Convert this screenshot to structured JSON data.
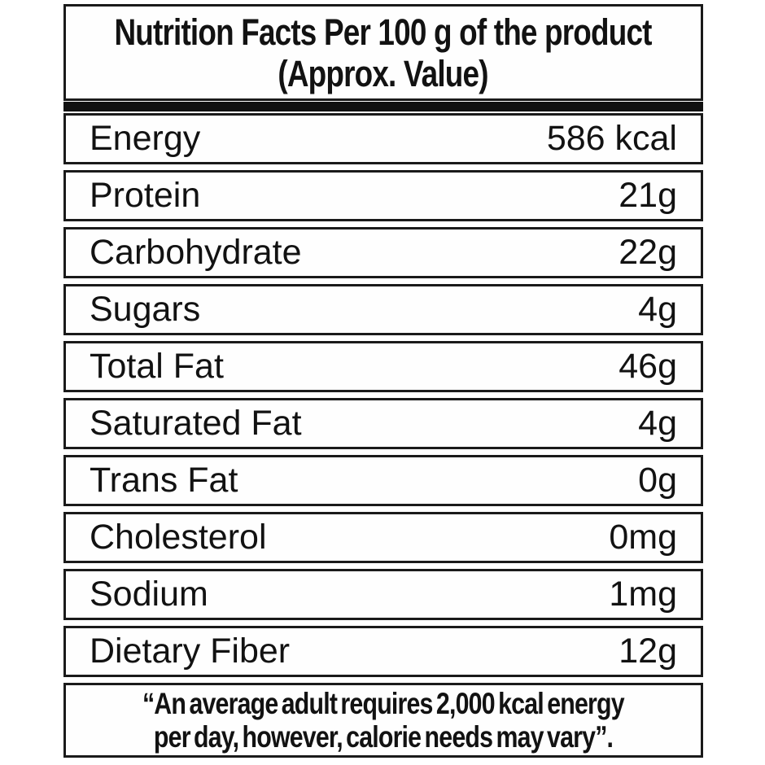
{
  "label": {
    "title_line1": "Nutrition Facts Per 100 g of the product",
    "title_line2": "(Approx. Value)",
    "rows": [
      {
        "name": "Energy",
        "value": "586 kcal"
      },
      {
        "name": "Protein",
        "value": "21g"
      },
      {
        "name": "Carbohydrate",
        "value": "22g"
      },
      {
        "name": "Sugars",
        "value": "4g"
      },
      {
        "name": "Total Fat",
        "value": "46g"
      },
      {
        "name": "Saturated Fat",
        "value": "4g"
      },
      {
        "name": "Trans Fat",
        "value": "0g"
      },
      {
        "name": "Cholesterol",
        "value": "0mg"
      },
      {
        "name": "Sodium",
        "value": "1mg"
      },
      {
        "name": "Dietary Fiber",
        "value": "12g"
      }
    ],
    "footnote_line1": "“An average adult requires 2,000 kcal energy",
    "footnote_line2": "per day, however, calorie needs may vary”.",
    "colors": {
      "border": "#1a1a1a",
      "text": "#121212",
      "background": "#ffffff"
    }
  }
}
